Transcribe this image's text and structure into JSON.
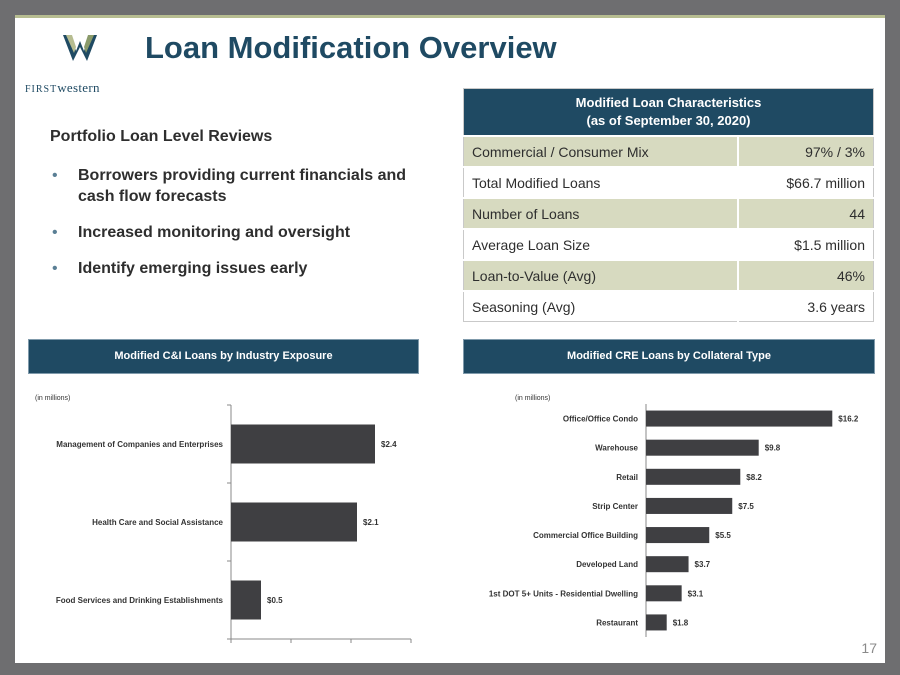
{
  "brand": {
    "wordmark_first": "FIRST",
    "wordmark_rest": "western",
    "primary_color": "#1f4a63",
    "accent_color": "#b7bd91"
  },
  "title": "Loan Modification Overview",
  "left_section": {
    "heading": "Portfolio Loan Level Reviews",
    "bullets": [
      "Borrowers providing current financials and cash flow forecasts",
      "Increased monitoring and oversight",
      "Identify emerging issues early"
    ]
  },
  "characteristics_table": {
    "header_line1": "Modified Loan Characteristics",
    "header_line2": "(as of September 30, 2020)",
    "rows": [
      {
        "label": "Commercial / Consumer Mix",
        "value": "97% / 3%"
      },
      {
        "label": "Total Modified Loans",
        "value": "$66.7 million"
      },
      {
        "label": "Number of Loans",
        "value": "44"
      },
      {
        "label": "Average Loan Size",
        "value": "$1.5 million"
      },
      {
        "label": "Loan-to-Value (Avg)",
        "value": "46%"
      },
      {
        "label": "Seasoning (Avg)",
        "value": "3.6 years"
      }
    ]
  },
  "chart_data": [
    {
      "type": "bar",
      "orientation": "horizontal",
      "title": "Modified C&I Loans by Industry Exposure",
      "units_note": "(in millions)",
      "categories": [
        "Management of Companies and Enterprises",
        "Health Care and Social Assistance",
        "Food Services and Drinking Establishments"
      ],
      "values": [
        2.4,
        2.1,
        0.5
      ],
      "data_labels": [
        "$2.4",
        "$2.1",
        "$0.5"
      ],
      "xlim": [
        0,
        3
      ],
      "bar_color": "#3f3f42"
    },
    {
      "type": "bar",
      "orientation": "horizontal",
      "title": "Modified CRE Loans by Collateral Type",
      "units_note": "(in millions)",
      "categories": [
        "Office/Office Condo",
        "Warehouse",
        "Retail",
        "Strip Center",
        "Commercial Office Building",
        "Developed Land",
        "1st DOT 5+ Units - Residential Dwelling",
        "Restaurant"
      ],
      "values": [
        16.2,
        9.8,
        8.2,
        7.5,
        5.5,
        3.7,
        3.1,
        1.8
      ],
      "data_labels": [
        "$16.2",
        "$9.8",
        "$8.2",
        "$7.5",
        "$5.5",
        "$3.7",
        "$3.1",
        "$1.8"
      ],
      "xlim": [
        0,
        20
      ],
      "bar_color": "#3f3f42"
    }
  ],
  "page_number": "17"
}
